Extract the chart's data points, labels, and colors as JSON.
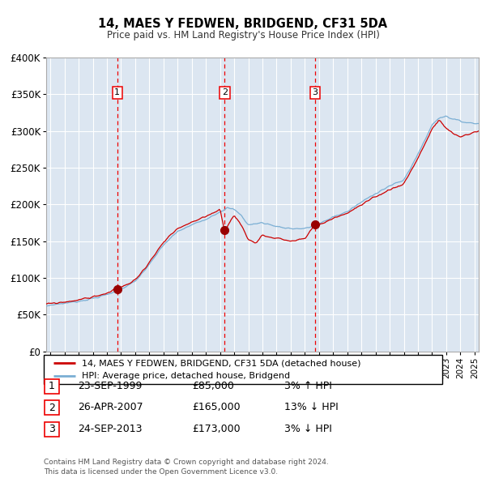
{
  "title": "14, MAES Y FEDWEN, BRIDGEND, CF31 5DA",
  "subtitle": "Price paid vs. HM Land Registry's House Price Index (HPI)",
  "legend_line1": "14, MAES Y FEDWEN, BRIDGEND, CF31 5DA (detached house)",
  "legend_line2": "HPI: Average price, detached house, Bridgend",
  "purchases": [
    {
      "label": "1",
      "date": 1999.73,
      "price": 85000
    },
    {
      "label": "2",
      "date": 2007.32,
      "price": 165000
    },
    {
      "label": "3",
      "date": 2013.73,
      "price": 173000
    }
  ],
  "table_rows": [
    {
      "num": "1",
      "date": "23-SEP-1999",
      "price": "£85,000",
      "hpi": "3% ↑ HPI"
    },
    {
      "num": "2",
      "date": "26-APR-2007",
      "price": "£165,000",
      "hpi": "13% ↓ HPI"
    },
    {
      "num": "3",
      "date": "24-SEP-2013",
      "price": "£173,000",
      "hpi": "3% ↓ HPI"
    }
  ],
  "footer": "Contains HM Land Registry data © Crown copyright and database right 2024.\nThis data is licensed under the Open Government Licence v3.0.",
  "hpi_color": "#7bafd4",
  "price_color": "#cc0000",
  "marker_color": "#990000",
  "vline_color": "#ee0000",
  "bg_color": "#dce6f1",
  "grid_color": "#ffffff",
  "ylim": [
    0,
    400000
  ],
  "yticks": [
    0,
    50000,
    100000,
    150000,
    200000,
    250000,
    300000,
    350000,
    400000
  ],
  "xlim_start": 1994.7,
  "xlim_end": 2025.3
}
